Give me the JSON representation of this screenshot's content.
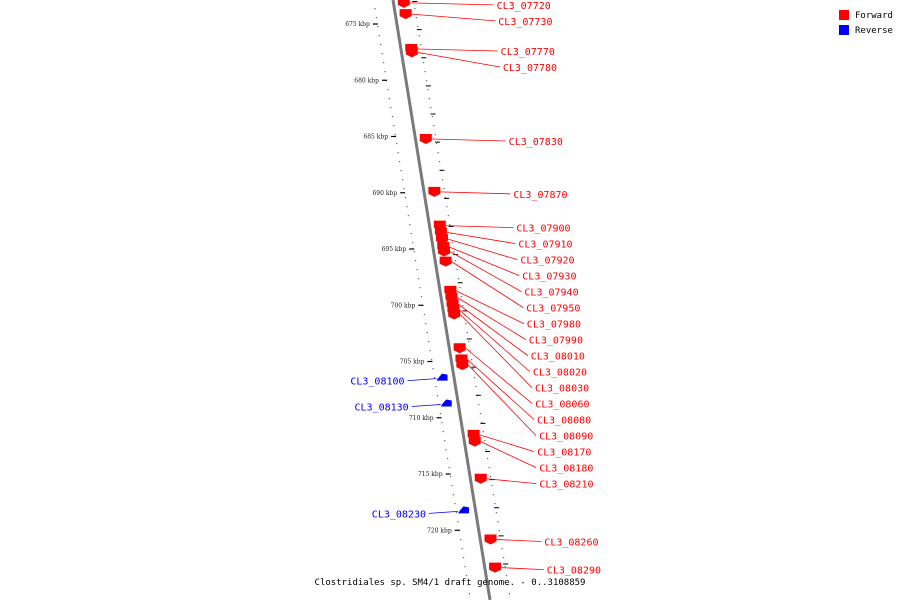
{
  "caption": "Clostridiales sp. SM4/1 draft genome. - 0..3108859",
  "legend": [
    {
      "label": "Forward",
      "color": "#ff0000"
    },
    {
      "label": "Reverse",
      "color": "#0000ff"
    }
  ],
  "ticks": [
    {
      "kbp": 675,
      "label": "675 kbp"
    },
    {
      "kbp": 680,
      "label": "680 kbp"
    },
    {
      "kbp": 685,
      "label": "685 kbp"
    },
    {
      "kbp": 690,
      "label": "690 kbp"
    },
    {
      "kbp": 695,
      "label": "695 kbp"
    },
    {
      "kbp": 700,
      "label": "700 kbp"
    },
    {
      "kbp": 705,
      "label": "705 kbp"
    },
    {
      "kbp": 710,
      "label": "710 kbp"
    },
    {
      "kbp": 715,
      "label": "715 kbp"
    },
    {
      "kbp": 720,
      "label": "720 kbp"
    }
  ],
  "genes": [
    {
      "name": "CL3_07720",
      "strand": "forward",
      "kbp": 673.3
    },
    {
      "name": "CL3_07730",
      "strand": "forward",
      "kbp": 674.3
    },
    {
      "name": "CL3_07770",
      "strand": "forward",
      "kbp": 677.4
    },
    {
      "name": "CL3_07780",
      "strand": "forward",
      "kbp": 677.7
    },
    {
      "name": "CL3_07830",
      "strand": "forward",
      "kbp": 685.4
    },
    {
      "name": "CL3_07870",
      "strand": "forward",
      "kbp": 690.1
    },
    {
      "name": "CL3_07900",
      "strand": "forward",
      "kbp": 693.1
    },
    {
      "name": "CL3_07910",
      "strand": "forward",
      "kbp": 693.7
    },
    {
      "name": "CL3_07920",
      "strand": "forward",
      "kbp": 694.3
    },
    {
      "name": "CL3_07930",
      "strand": "forward",
      "kbp": 695.0
    },
    {
      "name": "CL3_07940",
      "strand": "forward",
      "kbp": 695.4
    },
    {
      "name": "CL3_07950",
      "strand": "forward",
      "kbp": 696.3
    },
    {
      "name": "CL3_07980",
      "strand": "forward",
      "kbp": 698.9
    },
    {
      "name": "CL3_07990",
      "strand": "forward",
      "kbp": 699.5
    },
    {
      "name": "CL3_08010",
      "strand": "forward",
      "kbp": 700.1
    },
    {
      "name": "CL3_08020",
      "strand": "forward",
      "kbp": 700.6
    },
    {
      "name": "CL3_08030",
      "strand": "forward",
      "kbp": 701.0
    },
    {
      "name": "CL3_08060",
      "strand": "forward",
      "kbp": 704.0
    },
    {
      "name": "CL3_08080",
      "strand": "forward",
      "kbp": 705.0
    },
    {
      "name": "CL3_08090",
      "strand": "forward",
      "kbp": 705.5
    },
    {
      "name": "CL3_08100",
      "strand": "reverse",
      "kbp": 706.7
    },
    {
      "name": "CL3_08130",
      "strand": "reverse",
      "kbp": 709.0
    },
    {
      "name": "CL3_08170",
      "strand": "forward",
      "kbp": 711.7
    },
    {
      "name": "CL3_08180",
      "strand": "forward",
      "kbp": 712.3
    },
    {
      "name": "CL3_08210",
      "strand": "forward",
      "kbp": 715.6
    },
    {
      "name": "CL3_08230",
      "strand": "reverse",
      "kbp": 718.5
    },
    {
      "name": "CL3_08260",
      "strand": "forward",
      "kbp": 721.0
    },
    {
      "name": "CL3_08290",
      "strand": "forward",
      "kbp": 723.5
    }
  ]
}
